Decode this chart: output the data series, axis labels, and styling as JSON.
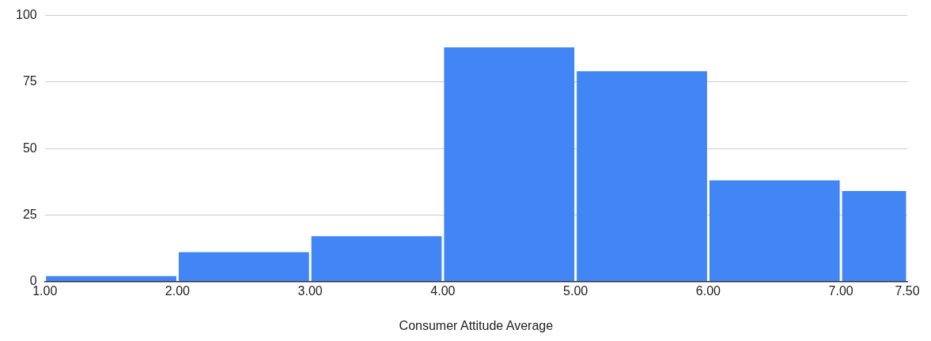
{
  "chart_data": {
    "type": "histogram",
    "xlabel": "Consumer Attitude Average",
    "bins": [
      1,
      2,
      3,
      4,
      5,
      6,
      7,
      7.5
    ],
    "xlim": [
      1,
      7.5
    ],
    "xticks": [
      {
        "value": 1,
        "label": "1.00"
      },
      {
        "value": 2,
        "label": "2.00"
      },
      {
        "value": 3,
        "label": "3.00"
      },
      {
        "value": 4,
        "label": "4.00"
      },
      {
        "value": 5,
        "label": "5.00"
      },
      {
        "value": 6,
        "label": "6.00"
      },
      {
        "value": 7,
        "label": "7.00"
      },
      {
        "value": 7.5,
        "label": "7.50"
      }
    ],
    "values": [
      2,
      11,
      17,
      88,
      79,
      38,
      34
    ],
    "color": "#4285f4",
    "ylim": [
      0,
      100
    ],
    "yticks": [
      0,
      25,
      50,
      75,
      100
    ],
    "grid": "y"
  }
}
